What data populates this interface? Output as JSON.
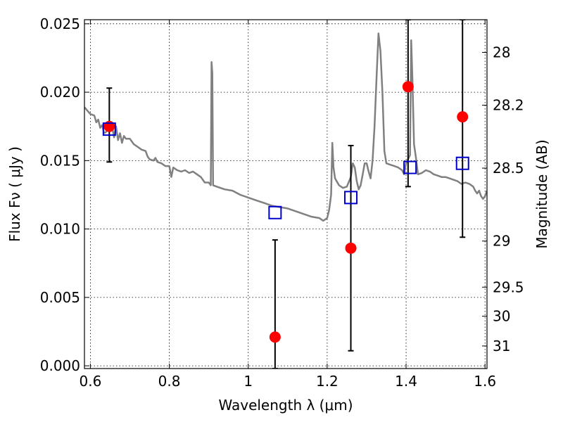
{
  "chart_data": {
    "type": "scatter",
    "xlabel": "Wavelength  λ (μm)",
    "ylabel": "Flux  Fν  ( μJy )",
    "y2label": "Magnitude (AB)",
    "xlim": [
      0.585,
      1.605
    ],
    "ylim": [
      -0.0002,
      0.0253
    ],
    "grid": true,
    "x_ticks": [
      {
        "value": 0.6,
        "label": "0.6"
      },
      {
        "value": 0.8,
        "label": "0.8"
      },
      {
        "value": 1.0,
        "label": "1"
      },
      {
        "value": 1.2,
        "label": "1.2"
      },
      {
        "value": 1.4,
        "label": "1.4"
      },
      {
        "value": 1.6,
        "label": "1.6"
      }
    ],
    "y_ticks": [
      {
        "value": 0.0,
        "label": "0.000"
      },
      {
        "value": 0.005,
        "label": "0.005"
      },
      {
        "value": 0.01,
        "label": "0.010"
      },
      {
        "value": 0.015,
        "label": "0.015"
      },
      {
        "value": 0.02,
        "label": "0.020"
      },
      {
        "value": 0.025,
        "label": "0.025"
      }
    ],
    "y2_ticks": [
      {
        "flux": 0.02291,
        "label": "28"
      },
      {
        "flux": 0.01905,
        "label": "28.2"
      },
      {
        "flux": 0.01445,
        "label": "28.5"
      },
      {
        "flux": 0.00912,
        "label": "29"
      },
      {
        "flux": 0.00575,
        "label": "29.5"
      },
      {
        "flux": 0.00363,
        "label": "30"
      },
      {
        "flux": 0.00145,
        "label": "31"
      }
    ],
    "series": [
      {
        "kind": "line",
        "color": "#808080",
        "points": [
          [
            0.585,
            0.0189
          ],
          [
            0.6,
            0.0184
          ],
          [
            0.61,
            0.0183
          ],
          [
            0.615,
            0.0178
          ],
          [
            0.62,
            0.018
          ],
          [
            0.625,
            0.0174
          ],
          [
            0.63,
            0.0176
          ],
          [
            0.635,
            0.017
          ],
          [
            0.64,
            0.0171
          ],
          [
            0.645,
            0.0173
          ],
          [
            0.65,
            0.0178
          ],
          [
            0.655,
            0.0175
          ],
          [
            0.66,
            0.0167
          ],
          [
            0.665,
            0.0175
          ],
          [
            0.67,
            0.0165
          ],
          [
            0.675,
            0.017
          ],
          [
            0.68,
            0.0163
          ],
          [
            0.685,
            0.0168
          ],
          [
            0.69,
            0.0166
          ],
          [
            0.7,
            0.0166
          ],
          [
            0.71,
            0.0162
          ],
          [
            0.72,
            0.016
          ],
          [
            0.73,
            0.0158
          ],
          [
            0.74,
            0.0157
          ],
          [
            0.745,
            0.0153
          ],
          [
            0.75,
            0.0151
          ],
          [
            0.76,
            0.015
          ],
          [
            0.765,
            0.0152
          ],
          [
            0.77,
            0.0149
          ],
          [
            0.78,
            0.0148
          ],
          [
            0.79,
            0.0146
          ],
          [
            0.8,
            0.0146
          ],
          [
            0.805,
            0.0138
          ],
          [
            0.81,
            0.0145
          ],
          [
            0.82,
            0.0143
          ],
          [
            0.83,
            0.0142
          ],
          [
            0.84,
            0.0143
          ],
          [
            0.85,
            0.0141
          ],
          [
            0.86,
            0.0142
          ],
          [
            0.87,
            0.014
          ],
          [
            0.88,
            0.0138
          ],
          [
            0.89,
            0.0134
          ],
          [
            0.9,
            0.0134
          ],
          [
            0.905,
            0.0132
          ],
          [
            0.907,
            0.0222
          ],
          [
            0.909,
            0.0214
          ],
          [
            0.911,
            0.0132
          ],
          [
            0.92,
            0.0131
          ],
          [
            0.94,
            0.0129
          ],
          [
            0.96,
            0.0128
          ],
          [
            0.98,
            0.0125
          ],
          [
            1.0,
            0.0123
          ],
          [
            1.02,
            0.0121
          ],
          [
            1.04,
            0.0119
          ],
          [
            1.06,
            0.0117
          ],
          [
            1.08,
            0.0116
          ],
          [
            1.1,
            0.0115
          ],
          [
            1.12,
            0.0113
          ],
          [
            1.14,
            0.0111
          ],
          [
            1.16,
            0.0109
          ],
          [
            1.18,
            0.0108
          ],
          [
            1.19,
            0.0106
          ],
          [
            1.2,
            0.0108
          ],
          [
            1.205,
            0.0114
          ],
          [
            1.21,
            0.0125
          ],
          [
            1.213,
            0.0163
          ],
          [
            1.216,
            0.0145
          ],
          [
            1.22,
            0.0137
          ],
          [
            1.23,
            0.0132
          ],
          [
            1.24,
            0.013
          ],
          [
            1.25,
            0.0131
          ],
          [
            1.26,
            0.0138
          ],
          [
            1.265,
            0.0148
          ],
          [
            1.27,
            0.0145
          ],
          [
            1.275,
            0.0135
          ],
          [
            1.28,
            0.0129
          ],
          [
            1.285,
            0.0132
          ],
          [
            1.29,
            0.014
          ],
          [
            1.295,
            0.0148
          ],
          [
            1.3,
            0.0148
          ],
          [
            1.305,
            0.0142
          ],
          [
            1.31,
            0.0137
          ],
          [
            1.315,
            0.015
          ],
          [
            1.32,
            0.0175
          ],
          [
            1.325,
            0.021
          ],
          [
            1.33,
            0.0243
          ],
          [
            1.335,
            0.023
          ],
          [
            1.34,
            0.02
          ],
          [
            1.345,
            0.0157
          ],
          [
            1.35,
            0.0148
          ],
          [
            1.36,
            0.0147
          ],
          [
            1.37,
            0.0146
          ],
          [
            1.38,
            0.0145
          ],
          [
            1.39,
            0.0143
          ],
          [
            1.395,
            0.014
          ],
          [
            1.4,
            0.0148
          ],
          [
            1.41,
            0.0154
          ],
          [
            1.413,
            0.0238
          ],
          [
            1.416,
            0.021
          ],
          [
            1.42,
            0.0162
          ],
          [
            1.425,
            0.0152
          ],
          [
            1.43,
            0.014
          ],
          [
            1.44,
            0.0141
          ],
          [
            1.45,
            0.0143
          ],
          [
            1.46,
            0.0142
          ],
          [
            1.47,
            0.014
          ],
          [
            1.48,
            0.0139
          ],
          [
            1.49,
            0.0138
          ],
          [
            1.5,
            0.0138
          ],
          [
            1.51,
            0.0137
          ],
          [
            1.52,
            0.0136
          ],
          [
            1.53,
            0.0135
          ],
          [
            1.54,
            0.0133
          ],
          [
            1.55,
            0.0134
          ],
          [
            1.56,
            0.0133
          ],
          [
            1.57,
            0.0131
          ],
          [
            1.575,
            0.0128
          ],
          [
            1.58,
            0.0126
          ],
          [
            1.585,
            0.0128
          ],
          [
            1.59,
            0.0124
          ],
          [
            1.595,
            0.0122
          ],
          [
            1.6,
            0.0124
          ],
          [
            1.605,
            0.0128
          ]
        ]
      },
      {
        "kind": "errorbar",
        "color": "#000000",
        "points": [
          {
            "x": 0.648,
            "y": 0.0175,
            "ylo": 0.0149,
            "yhi": 0.0203
          },
          {
            "x": 1.068,
            "y": 0.0021,
            "ylo": -0.0002,
            "yhi": 0.0092
          },
          {
            "x": 1.26,
            "y": 0.0086,
            "ylo": 0.0011,
            "yhi": 0.0161
          },
          {
            "x": 1.405,
            "y": 0.0204,
            "ylo": 0.0131,
            "yhi": 0.0253
          },
          {
            "x": 1.543,
            "y": 0.0182,
            "ylo": 0.0094,
            "yhi": 0.0253
          }
        ]
      },
      {
        "kind": "scatter",
        "marker": "circle",
        "color": "#ff0000",
        "points": [
          {
            "x": 0.648,
            "y": 0.0175
          },
          {
            "x": 1.068,
            "y": 0.0021
          },
          {
            "x": 1.26,
            "y": 0.0086
          },
          {
            "x": 1.405,
            "y": 0.0204
          },
          {
            "x": 1.543,
            "y": 0.0182
          }
        ]
      },
      {
        "kind": "scatter",
        "marker": "square-open",
        "color": "#0000cc",
        "points": [
          {
            "x": 0.648,
            "y": 0.0173
          },
          {
            "x": 1.068,
            "y": 0.0112
          },
          {
            "x": 1.26,
            "y": 0.0123
          },
          {
            "x": 1.41,
            "y": 0.0145
          },
          {
            "x": 1.543,
            "y": 0.0148
          }
        ]
      }
    ]
  }
}
